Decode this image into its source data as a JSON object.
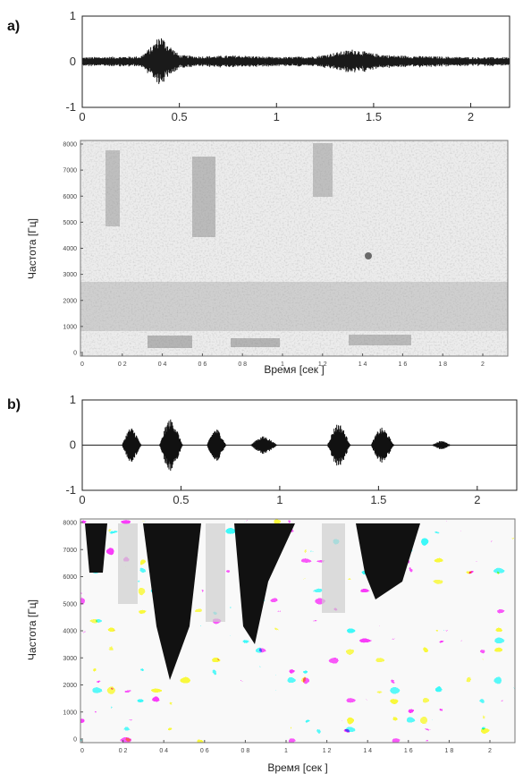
{
  "panels": [
    {
      "label": "a)",
      "waveform": {
        "chart_data": {
          "type": "line",
          "title": "",
          "xlabel": "",
          "ylabel": "",
          "xlim": [
            0,
            2.2
          ],
          "ylim": [
            -1,
            1
          ],
          "xticks": [
            "0",
            "0.5",
            "1",
            "1.5",
            "2"
          ],
          "yticks": [
            "1",
            "0",
            "-1"
          ],
          "envelope": {
            "x": [
              0,
              0.3,
              0.36,
              0.4,
              0.44,
              0.5,
              0.6,
              0.8,
              1.0,
              1.2,
              1.3,
              1.4,
              1.5,
              1.6,
              1.8,
              2.0,
              2.2
            ],
            "amplitude": [
              0.1,
              0.12,
              0.35,
              0.6,
              0.4,
              0.15,
              0.12,
              0.14,
              0.1,
              0.12,
              0.2,
              0.28,
              0.18,
              0.14,
              0.12,
              0.1,
              0.1
            ]
          }
        }
      },
      "spectrogram": {
        "chart_data": {
          "type": "heatmap",
          "title": "",
          "xlabel": "Время [сек ]",
          "ylabel": "Частота [Гц]",
          "xlim": [
            0,
            2.4
          ],
          "ylim": [
            0,
            8000
          ],
          "xticks": [
            "0",
            "0 2",
            "0 4",
            "0 6",
            "0 8",
            "1",
            "1 2",
            "1 4",
            "1 6",
            "1 8",
            "2"
          ],
          "yticks": [
            "8000",
            "7000",
            "6000",
            "5000",
            "4000",
            "3000",
            "2000",
            "1000",
            "0"
          ],
          "intensity": "light-gray speckled, darker band 1000-3000 Hz, frication streaks near 0.2, 0.6, 1.2 s"
        }
      }
    },
    {
      "label": "b)",
      "waveform": {
        "chart_data": {
          "type": "line",
          "title": "",
          "xlabel": "",
          "ylabel": "",
          "xlim": [
            0,
            2.2
          ],
          "ylim": [
            -1,
            1
          ],
          "xticks": [
            "0",
            "0.5",
            "1",
            "1.5",
            "2"
          ],
          "yticks": [
            "1",
            "0",
            "-1"
          ],
          "bursts": [
            {
              "center": 0.25,
              "width": 0.1,
              "amplitude": 0.4
            },
            {
              "center": 0.45,
              "width": 0.12,
              "amplitude": 0.6
            },
            {
              "center": 0.68,
              "width": 0.1,
              "amplitude": 0.38
            },
            {
              "center": 0.92,
              "width": 0.14,
              "amplitude": 0.2
            },
            {
              "center": 1.3,
              "width": 0.12,
              "amplitude": 0.5
            },
            {
              "center": 1.52,
              "width": 0.12,
              "amplitude": 0.4
            },
            {
              "center": 1.82,
              "width": 0.1,
              "amplitude": 0.1
            }
          ]
        }
      },
      "spectrogram": {
        "chart_data": {
          "type": "heatmap",
          "title": "",
          "xlabel": "Время [сек ]",
          "ylabel": "Частота [Гц]",
          "xlim": [
            0,
            2.4
          ],
          "ylim": [
            0,
            8000
          ],
          "xticks": [
            "0",
            "0 2",
            "0 4",
            "0 6",
            "0 8",
            "1",
            "1 2",
            "1 4",
            "1 6",
            "1 8",
            "2"
          ],
          "yticks": [
            "8000",
            "7000",
            "6000",
            "5000",
            "4000",
            "3000",
            "2000",
            "1000",
            "0"
          ],
          "intensity": "high-contrast black and white blocks; dark wedges at top around 0.3, 0.6, 1.1 s"
        }
      }
    }
  ]
}
